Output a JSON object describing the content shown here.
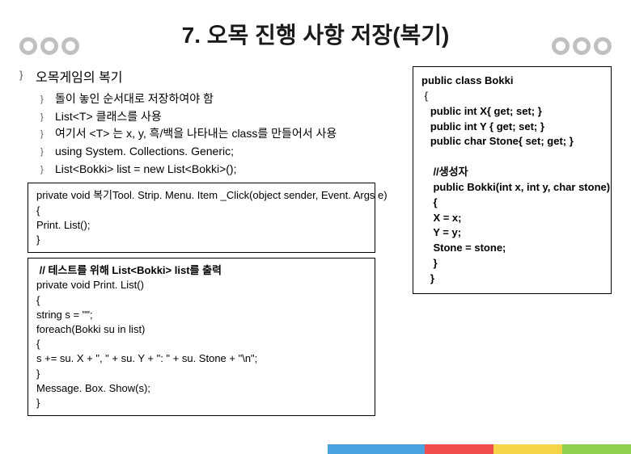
{
  "title": "7. 오목 진행 사항 저장(복기)",
  "heading": "오목게임의 복기",
  "bullets": {
    "b1": "돌이 놓인 순서대로 저장하여야 함",
    "b2": "List<T> 클래스를 사용",
    "b3": "여기서 <T> 는 x, y, 흑/백을 나타내는 class를 만들어서 사용",
    "b4": "using System. Collections. Generic;",
    "b5": "List<Bokki> list = new List<Bokki>();"
  },
  "code1": "private void 복기Tool. Strip. Menu. Item _Click(object sender, Event. Args e)\n{\nPrint. List();\n}",
  "code2": " // 테스트를 위해 List<Bokki> list를 출력\nprivate void Print. List()\n{\nstring s = \"\";\nforeach(Bokki su in list)\n{\ns += su. X + \", \" + su. Y + \": \" + su. Stone + \"\\n\";\n}\nMessage. Box. Show(s);\n}",
  "right_code": {
    "l1": "public class Bokki",
    "l2": " {",
    "l3": "   public int X{ get; set; }",
    "l4": "   public int Y { get; set; }",
    "l5": "   public char Stone{ set; get; }",
    "l6": "",
    "l7": "    //생성자",
    "l8": "    public Bokki(int x, int y, char stone)",
    "l9": "    {",
    "l10": "    X = x;",
    "l11": "    Y = y;",
    "l12": "    Stone = stone;",
    "l13": "    }",
    "l14": "   }"
  },
  "colors": {
    "circle_border": "#c0c0c0",
    "text": "#1a1a1a",
    "box_border": "#000000",
    "footer": [
      "#4aa3df",
      "#f04e4e",
      "#f5d547",
      "#8fd14f"
    ]
  }
}
